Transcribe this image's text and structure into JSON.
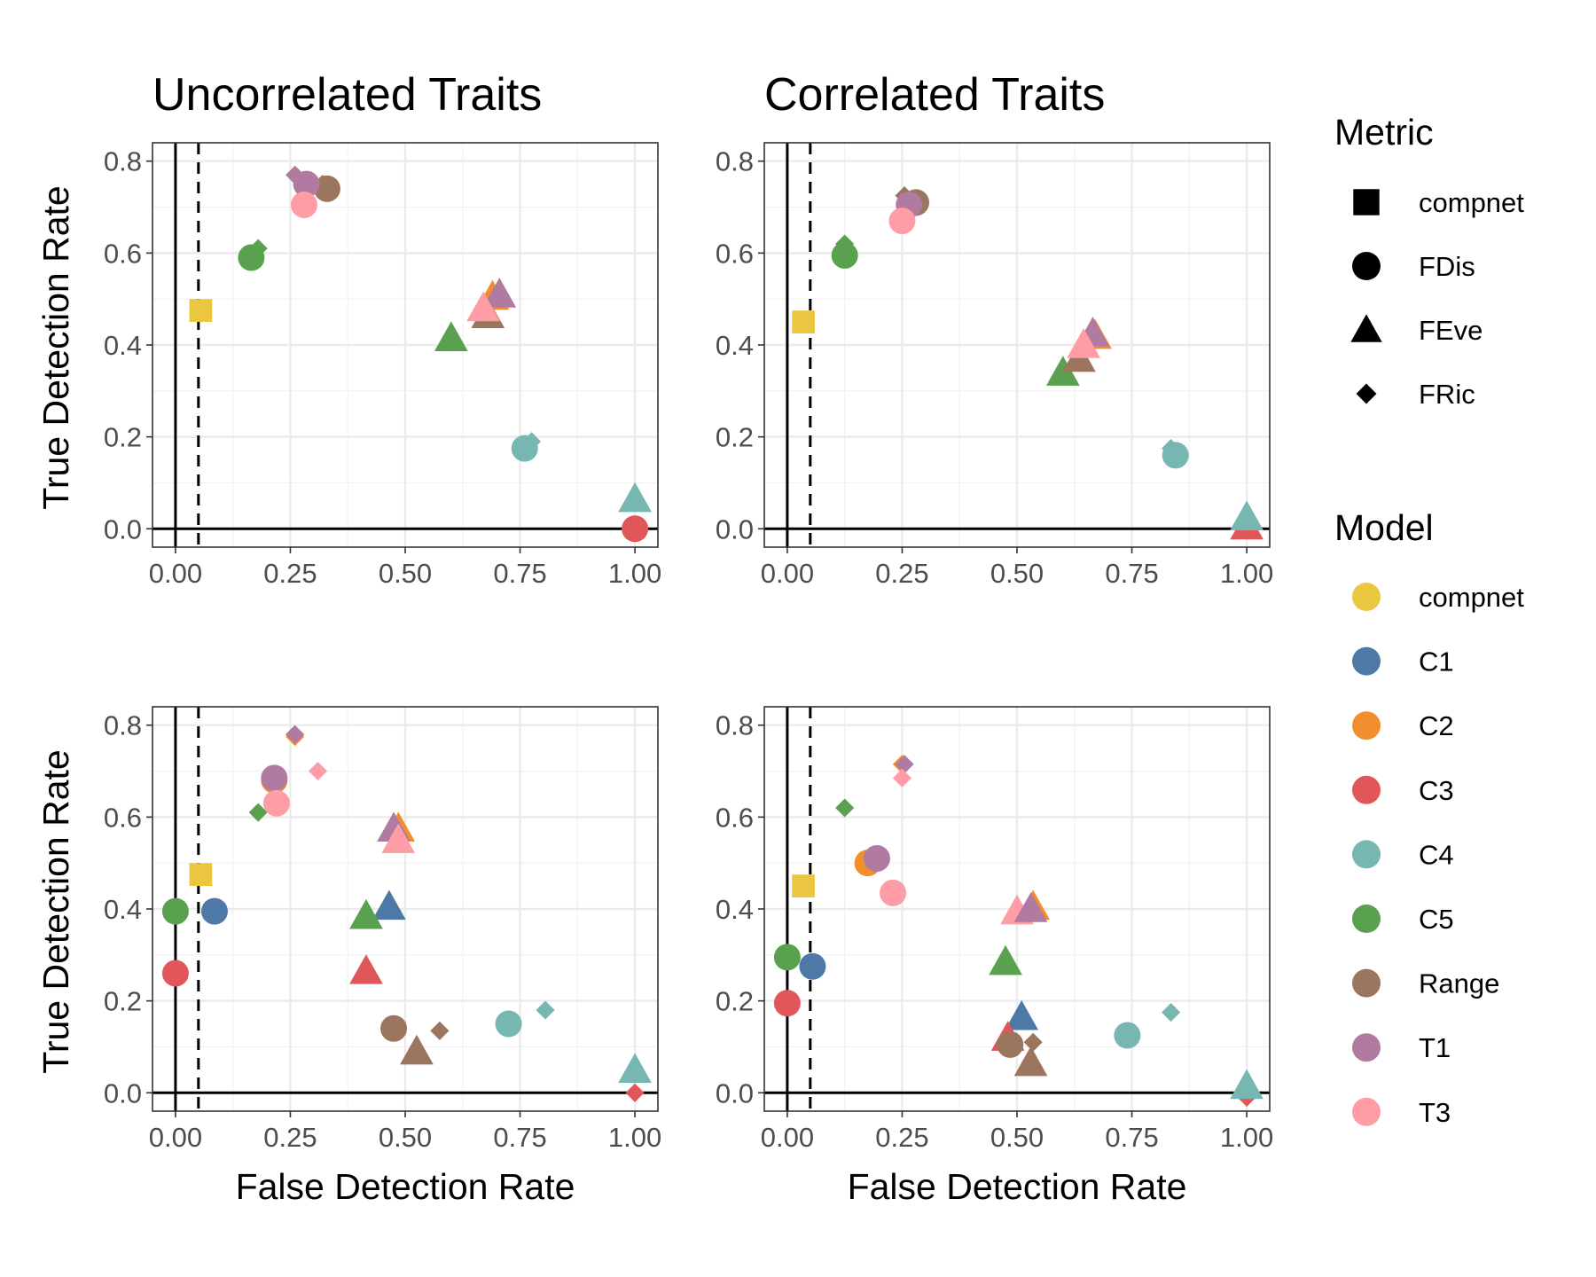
{
  "colors": {
    "compnet": "#EBC640",
    "C1": "#4E79A7",
    "C2": "#F28E2B",
    "C3": "#E15759",
    "C4": "#76B7B2",
    "C5": "#59A14F",
    "Range": "#9C755F",
    "T1": "#B07AA1",
    "T3": "#FF9DA7"
  },
  "chart_data": [
    {
      "type": "scatter",
      "title": "Uncorrelated Traits",
      "xlabel": "",
      "ylabel": "True Detection Rate",
      "xlim": [
        -0.05,
        1.05
      ],
      "ylim": [
        -0.04,
        0.84
      ],
      "xticks": [
        "0.00",
        "0.25",
        "0.50",
        "0.75",
        "1.00"
      ],
      "yticks": [
        "0.0",
        "0.2",
        "0.4",
        "0.6",
        "0.8"
      ],
      "grid": true,
      "reference_lines": {
        "x_solid": 0,
        "x_dashed": 0.05,
        "y_solid": 0
      },
      "points": [
        {
          "model": "compnet",
          "metric": "compnet",
          "x": 0.055,
          "y": 0.475
        },
        {
          "model": "C5",
          "metric": "FRic",
          "x": 0.18,
          "y": 0.61
        },
        {
          "model": "C5",
          "metric": "FDis",
          "x": 0.165,
          "y": 0.59
        },
        {
          "model": "C2",
          "metric": "FRic",
          "x": 0.265,
          "y": 0.765
        },
        {
          "model": "T1",
          "metric": "FRic",
          "x": 0.26,
          "y": 0.77
        },
        {
          "model": "Range",
          "metric": "FRic",
          "x": 0.32,
          "y": 0.75
        },
        {
          "model": "Range",
          "metric": "FDis",
          "x": 0.33,
          "y": 0.74
        },
        {
          "model": "T1",
          "metric": "FDis",
          "x": 0.285,
          "y": 0.75
        },
        {
          "model": "T3",
          "metric": "FRic",
          "x": 0.28,
          "y": 0.71
        },
        {
          "model": "T3",
          "metric": "FDis",
          "x": 0.28,
          "y": 0.705
        },
        {
          "model": "C5",
          "metric": "FEve",
          "x": 0.6,
          "y": 0.415
        },
        {
          "model": "Range",
          "metric": "FEve",
          "x": 0.68,
          "y": 0.465
        },
        {
          "model": "C2",
          "metric": "FEve",
          "x": 0.69,
          "y": 0.505
        },
        {
          "model": "T1",
          "metric": "FEve",
          "x": 0.705,
          "y": 0.51
        },
        {
          "model": "T3",
          "metric": "FEve",
          "x": 0.67,
          "y": 0.48
        },
        {
          "model": "C4",
          "metric": "FRic",
          "x": 0.775,
          "y": 0.19
        },
        {
          "model": "C4",
          "metric": "FDis",
          "x": 0.76,
          "y": 0.175
        },
        {
          "model": "C4",
          "metric": "FEve",
          "x": 1.0,
          "y": 0.065
        },
        {
          "model": "C3",
          "metric": "FDis",
          "x": 1.0,
          "y": 0.0
        },
        {
          "model": "C3",
          "metric": "FRic",
          "x": 1.0,
          "y": 0.0
        }
      ]
    },
    {
      "type": "scatter",
      "title": "Correlated Traits",
      "xlabel": "",
      "ylabel": "",
      "xlim": [
        -0.05,
        1.05
      ],
      "ylim": [
        -0.04,
        0.84
      ],
      "xticks": [
        "0.00",
        "0.25",
        "0.50",
        "0.75",
        "1.00"
      ],
      "yticks": [
        "0.0",
        "0.2",
        "0.4",
        "0.6",
        "0.8"
      ],
      "grid": true,
      "reference_lines": {
        "x_solid": 0,
        "x_dashed": 0.05,
        "y_solid": 0
      },
      "points": [
        {
          "model": "compnet",
          "metric": "compnet",
          "x": 0.035,
          "y": 0.45
        },
        {
          "model": "C5",
          "metric": "FRic",
          "x": 0.125,
          "y": 0.62
        },
        {
          "model": "C5",
          "metric": "FDis",
          "x": 0.125,
          "y": 0.595
        },
        {
          "model": "Range",
          "metric": "FRic",
          "x": 0.255,
          "y": 0.725
        },
        {
          "model": "Range",
          "metric": "FDis",
          "x": 0.28,
          "y": 0.71
        },
        {
          "model": "T1",
          "metric": "FDis",
          "x": 0.265,
          "y": 0.705
        },
        {
          "model": "T1",
          "metric": "FRic",
          "x": 0.26,
          "y": 0.695
        },
        {
          "model": "T3",
          "metric": "FDis",
          "x": 0.25,
          "y": 0.67
        },
        {
          "model": "C5",
          "metric": "FEve",
          "x": 0.6,
          "y": 0.34
        },
        {
          "model": "Range",
          "metric": "FEve",
          "x": 0.635,
          "y": 0.37
        },
        {
          "model": "C2",
          "metric": "FEve",
          "x": 0.67,
          "y": 0.42
        },
        {
          "model": "T1",
          "metric": "FEve",
          "x": 0.665,
          "y": 0.425
        },
        {
          "model": "T3",
          "metric": "FEve",
          "x": 0.645,
          "y": 0.4
        },
        {
          "model": "C4",
          "metric": "FRic",
          "x": 0.835,
          "y": 0.175
        },
        {
          "model": "C4",
          "metric": "FDis",
          "x": 0.845,
          "y": 0.16
        },
        {
          "model": "C3",
          "metric": "FEve",
          "x": 1.0,
          "y": 0.005
        },
        {
          "model": "C4",
          "metric": "FEve",
          "x": 1.0,
          "y": 0.025
        }
      ]
    },
    {
      "type": "scatter",
      "title": "",
      "xlabel": "False Detection Rate",
      "ylabel": "True Detection Rate",
      "xlim": [
        -0.05,
        1.05
      ],
      "ylim": [
        -0.04,
        0.84
      ],
      "xticks": [
        "0.00",
        "0.25",
        "0.50",
        "0.75",
        "1.00"
      ],
      "yticks": [
        "0.0",
        "0.2",
        "0.4",
        "0.6",
        "0.8"
      ],
      "grid": true,
      "reference_lines": {
        "x_solid": 0,
        "x_dashed": 0.05,
        "y_solid": 0
      },
      "points": [
        {
          "model": "compnet",
          "metric": "compnet",
          "x": 0.055,
          "y": 0.475
        },
        {
          "model": "C5",
          "metric": "FDis",
          "x": 0.0,
          "y": 0.395
        },
        {
          "model": "C1",
          "metric": "FDis",
          "x": 0.085,
          "y": 0.395
        },
        {
          "model": "C3",
          "metric": "FDis",
          "x": 0.0,
          "y": 0.26
        },
        {
          "model": "C2",
          "metric": "FRic",
          "x": 0.26,
          "y": 0.775
        },
        {
          "model": "T1",
          "metric": "FRic",
          "x": 0.26,
          "y": 0.78
        },
        {
          "model": "T3",
          "metric": "FRic",
          "x": 0.31,
          "y": 0.7
        },
        {
          "model": "C5",
          "metric": "FRic",
          "x": 0.18,
          "y": 0.61
        },
        {
          "model": "C2",
          "metric": "FDis",
          "x": 0.215,
          "y": 0.68
        },
        {
          "model": "T1",
          "metric": "FDis",
          "x": 0.215,
          "y": 0.685
        },
        {
          "model": "T3",
          "metric": "FDis",
          "x": 0.22,
          "y": 0.63
        },
        {
          "model": "C2",
          "metric": "FEve",
          "x": 0.485,
          "y": 0.575
        },
        {
          "model": "T1",
          "metric": "FEve",
          "x": 0.475,
          "y": 0.575
        },
        {
          "model": "T3",
          "metric": "FEve",
          "x": 0.485,
          "y": 0.55
        },
        {
          "model": "C1",
          "metric": "FEve",
          "x": 0.465,
          "y": 0.405
        },
        {
          "model": "C5",
          "metric": "FEve",
          "x": 0.415,
          "y": 0.385
        },
        {
          "model": "C3",
          "metric": "FEve",
          "x": 0.415,
          "y": 0.265
        },
        {
          "model": "Range",
          "metric": "FDis",
          "x": 0.475,
          "y": 0.14
        },
        {
          "model": "Range",
          "metric": "FRic",
          "x": 0.575,
          "y": 0.135
        },
        {
          "model": "Range",
          "metric": "FEve",
          "x": 0.525,
          "y": 0.09
        },
        {
          "model": "C4",
          "metric": "FDis",
          "x": 0.725,
          "y": 0.15
        },
        {
          "model": "C4",
          "metric": "FRic",
          "x": 0.805,
          "y": 0.18
        },
        {
          "model": "C4",
          "metric": "FEve",
          "x": 1.0,
          "y": 0.05
        },
        {
          "model": "C3",
          "metric": "FRic",
          "x": 1.0,
          "y": 0.0
        }
      ]
    },
    {
      "type": "scatter",
      "title": "",
      "xlabel": "False Detection Rate",
      "ylabel": "",
      "xlim": [
        -0.05,
        1.05
      ],
      "ylim": [
        -0.04,
        0.84
      ],
      "xticks": [
        "0.00",
        "0.25",
        "0.50",
        "0.75",
        "1.00"
      ],
      "yticks": [
        "0.0",
        "0.2",
        "0.4",
        "0.6",
        "0.8"
      ],
      "grid": true,
      "reference_lines": {
        "x_solid": 0,
        "x_dashed": 0.05,
        "y_solid": 0
      },
      "points": [
        {
          "model": "compnet",
          "metric": "compnet",
          "x": 0.035,
          "y": 0.45
        },
        {
          "model": "C5",
          "metric": "FDis",
          "x": 0.0,
          "y": 0.295
        },
        {
          "model": "C1",
          "metric": "FDis",
          "x": 0.055,
          "y": 0.275
        },
        {
          "model": "C3",
          "metric": "FDis",
          "x": 0.0,
          "y": 0.195
        },
        {
          "model": "C5",
          "metric": "FRic",
          "x": 0.125,
          "y": 0.62
        },
        {
          "model": "C2",
          "metric": "FRic",
          "x": 0.25,
          "y": 0.715
        },
        {
          "model": "T1",
          "metric": "FRic",
          "x": 0.255,
          "y": 0.715
        },
        {
          "model": "T3",
          "metric": "FRic",
          "x": 0.25,
          "y": 0.685
        },
        {
          "model": "C2",
          "metric": "FDis",
          "x": 0.175,
          "y": 0.5
        },
        {
          "model": "T1",
          "metric": "FDis",
          "x": 0.195,
          "y": 0.51
        },
        {
          "model": "T3",
          "metric": "FDis",
          "x": 0.23,
          "y": 0.435
        },
        {
          "model": "T3",
          "metric": "FEve",
          "x": 0.5,
          "y": 0.395
        },
        {
          "model": "C2",
          "metric": "FEve",
          "x": 0.535,
          "y": 0.405
        },
        {
          "model": "T1",
          "metric": "FEve",
          "x": 0.53,
          "y": 0.4
        },
        {
          "model": "C5",
          "metric": "FEve",
          "x": 0.475,
          "y": 0.285
        },
        {
          "model": "C1",
          "metric": "FEve",
          "x": 0.51,
          "y": 0.165
        },
        {
          "model": "C3",
          "metric": "FEve",
          "x": 0.48,
          "y": 0.12
        },
        {
          "model": "Range",
          "metric": "FDis",
          "x": 0.485,
          "y": 0.105
        },
        {
          "model": "Range",
          "metric": "FRic",
          "x": 0.535,
          "y": 0.11
        },
        {
          "model": "Range",
          "metric": "FEve",
          "x": 0.53,
          "y": 0.065
        },
        {
          "model": "C4",
          "metric": "FDis",
          "x": 0.74,
          "y": 0.125
        },
        {
          "model": "C4",
          "metric": "FRic",
          "x": 0.835,
          "y": 0.175
        },
        {
          "model": "C3",
          "metric": "FRic",
          "x": 1.0,
          "y": -0.01
        },
        {
          "model": "C4",
          "metric": "FEve",
          "x": 1.0,
          "y": 0.015
        }
      ]
    }
  ],
  "legend": {
    "metric_title": "Metric",
    "metric_items": [
      {
        "label": "compnet",
        "shape": "square"
      },
      {
        "label": "FDis",
        "shape": "circle"
      },
      {
        "label": "FEve",
        "shape": "triangle"
      },
      {
        "label": "FRic",
        "shape": "diamond"
      }
    ],
    "model_title": "Model",
    "model_items": [
      "compnet",
      "C1",
      "C2",
      "C3",
      "C4",
      "C5",
      "Range",
      "T1",
      "T3"
    ]
  }
}
